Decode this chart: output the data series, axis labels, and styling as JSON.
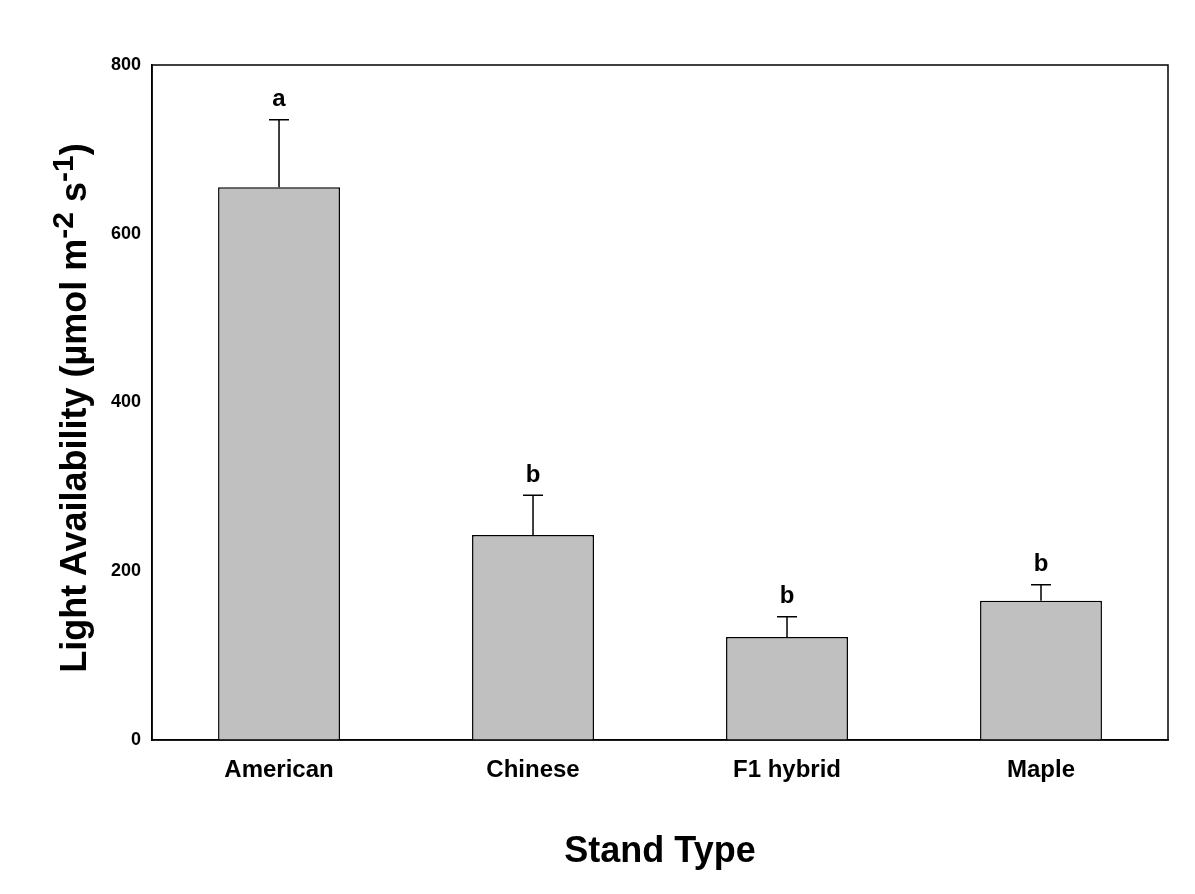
{
  "chart_data": {
    "type": "bar",
    "xlabel": "Stand Type",
    "ylabel": "Light Availability (µmol m$^{-2}$ s$^{-1}$)",
    "categories": [
      "American",
      "Chinese",
      "F1 hybrid",
      "Maple"
    ],
    "values": [
      655,
      243,
      122,
      165
    ],
    "errors": [
      80,
      47,
      24,
      19
    ],
    "color": "#c0c0c0",
    "ylim": [
      0,
      800
    ],
    "yticks": [
      0,
      200,
      400,
      600,
      800
    ],
    "grid": false,
    "legend": false,
    "annotations": [
      {
        "text": "a",
        "x": "American",
        "y": 735
      },
      {
        "text": "b",
        "x": "Chinese",
        "y": 290
      },
      {
        "text": "b",
        "x": "F1 hybrid",
        "y": 146
      },
      {
        "text": "b",
        "x": "Maple",
        "y": 184
      }
    ]
  }
}
